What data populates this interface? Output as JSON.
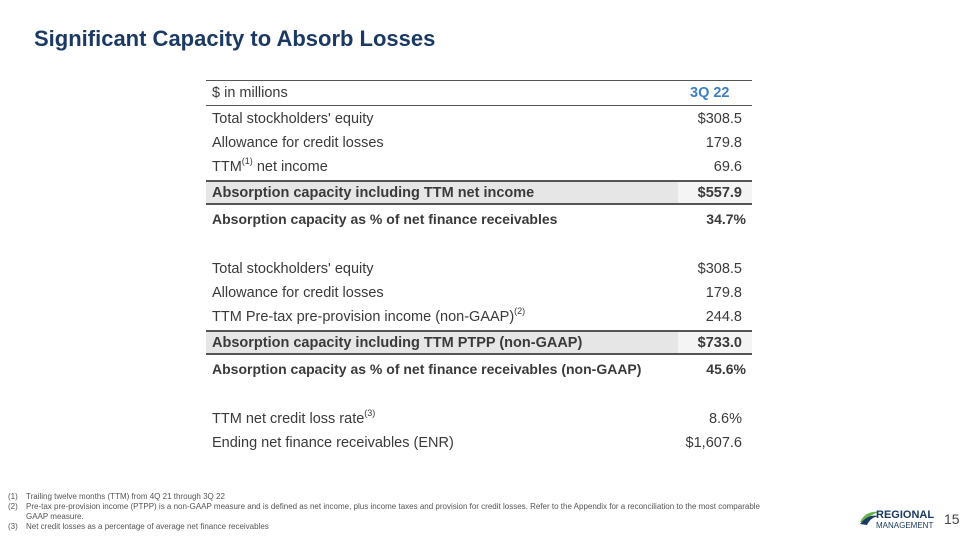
{
  "title": "Significant Capacity to Absorb Losses",
  "table": {
    "header_label": "$ in millions",
    "header_period": "3Q 22",
    "rows1": [
      {
        "label": "Total stockholders' equity",
        "value": "$308.5"
      },
      {
        "label": "Allowance for credit losses",
        "value": "179.8"
      },
      {
        "label": "TTM",
        "sup": "(1)",
        "label_suffix": " net income",
        "value": "69.6"
      }
    ],
    "highlight1": {
      "label": "Absorption capacity including TTM net income",
      "value": "$557.9"
    },
    "bold1": {
      "label": "Absorption capacity as % of net finance receivables",
      "value": "34.7%"
    },
    "rows2": [
      {
        "label": "Total stockholders' equity",
        "value": "$308.5"
      },
      {
        "label": "Allowance for credit losses",
        "value": "179.8"
      },
      {
        "label": "TTM Pre-tax pre-provision income (non-GAAP)",
        "sup": "(2)",
        "value": "244.8"
      }
    ],
    "highlight2": {
      "label": "Absorption capacity including TTM PTPP (non-GAAP)",
      "value": "$733.0"
    },
    "bold2": {
      "label": "Absorption capacity as % of net finance receivables (non-GAAP)",
      "value": "45.6%"
    },
    "rows3": [
      {
        "label": "TTM net credit loss rate",
        "sup": "(3)",
        "value": "8.6%"
      },
      {
        "label": "Ending net finance receivables (ENR)",
        "value": "$1,607.6"
      }
    ]
  },
  "footnotes": [
    {
      "num": "(1)",
      "text": "Trailing twelve months (TTM) from 4Q 21 through 3Q 22"
    },
    {
      "num": "(2)",
      "text": "Pre-tax pre-provision income (PTPP) is a non-GAAP measure and is defined as net income, plus income taxes and provision for credit losses. Refer to the Appendix for a reconciliation to the most comparable GAAP measure."
    },
    {
      "num": "(3)",
      "text": "Net credit losses as a percentage of average net finance receivables"
    }
  ],
  "logo": {
    "line1": "REGIONAL",
    "line2": "MANAGEMENT"
  },
  "page_number": "15",
  "colors": {
    "title": "#1b3a63",
    "accent": "#3e7fc2",
    "logo_green": "#6ab04c"
  }
}
